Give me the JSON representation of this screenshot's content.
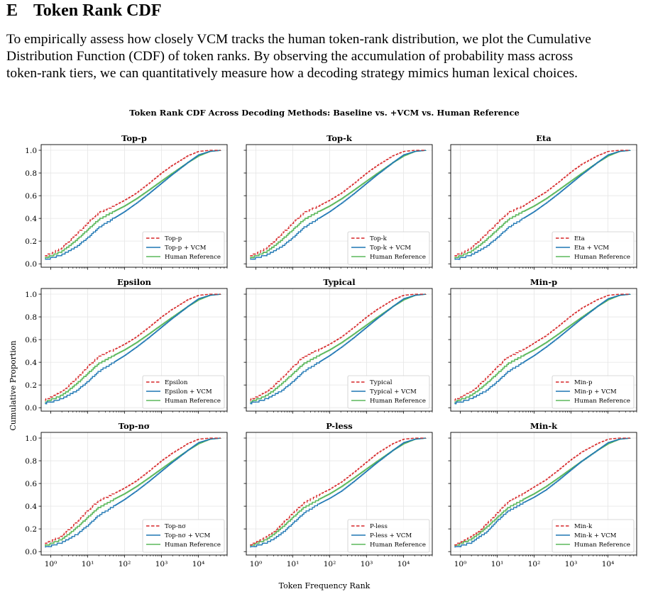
{
  "section": {
    "number": "E",
    "title": "Token Rank CDF",
    "paragraph_lines": [
      "To empirically assess how closely VCM tracks the human token-rank distribution, we plot the Cumulative",
      "Distribution Function (CDF) of token ranks. By observing the accumulation of probability mass across",
      "token-rank tiers, we can quantitatively measure how a decoding strategy mimics human lexical choices."
    ]
  },
  "figure": {
    "suptitle": "Token Rank CDF Across Decoding Methods: Baseline vs. +VCM vs. Human Reference",
    "xlabel": "Token Frequency Rank",
    "ylabel": "Cumulative Proportion",
    "colors": {
      "baseline": "#d62728",
      "vcm": "#1f77b4",
      "human": "#5cb85c"
    }
  },
  "chart_data": {
    "type": "line",
    "x_scale": "log",
    "x_ticks": [
      1,
      10,
      100,
      1000,
      10000
    ],
    "x_tick_labels": [
      "10⁰",
      "10¹",
      "10²",
      "10³",
      "10⁴"
    ],
    "xlim": [
      0.55,
      60000
    ],
    "ylim": [
      -0.03,
      1.05
    ],
    "y_ticks": [
      0.0,
      0.2,
      0.4,
      0.6,
      0.8,
      1.0
    ],
    "y_tick_labels": [
      "0.0",
      "0.2",
      "0.4",
      "0.6",
      "0.8",
      "1.0"
    ],
    "grid": true,
    "legend_position": "lower-right",
    "human_label": "Human Reference",
    "x": [
      0.7,
      1,
      2,
      3,
      5,
      10,
      20,
      50,
      100,
      200,
      500,
      1000,
      2000,
      5000,
      10000,
      20000,
      40000
    ],
    "human": [
      0.05,
      0.07,
      0.11,
      0.15,
      0.21,
      0.3,
      0.39,
      0.46,
      0.51,
      0.57,
      0.66,
      0.73,
      0.8,
      0.89,
      0.95,
      0.99,
      1.0
    ],
    "panels": [
      {
        "title": "Top-p",
        "baseline_label": "Top-p",
        "vcm_label": "Top-p + VCM",
        "baseline": [
          0.07,
          0.09,
          0.14,
          0.19,
          0.26,
          0.36,
          0.45,
          0.51,
          0.56,
          0.62,
          0.72,
          0.8,
          0.87,
          0.95,
          0.99,
          1.0,
          1.0
        ],
        "vcm": [
          0.04,
          0.05,
          0.08,
          0.11,
          0.15,
          0.23,
          0.32,
          0.4,
          0.46,
          0.53,
          0.63,
          0.71,
          0.79,
          0.89,
          0.96,
          0.99,
          1.0
        ]
      },
      {
        "title": "Top-k",
        "baseline_label": "Top-k",
        "vcm_label": "Top-k + VCM",
        "baseline": [
          0.07,
          0.09,
          0.14,
          0.19,
          0.26,
          0.36,
          0.45,
          0.51,
          0.56,
          0.62,
          0.72,
          0.8,
          0.87,
          0.95,
          0.99,
          1.0,
          1.0
        ],
        "vcm": [
          0.04,
          0.05,
          0.08,
          0.11,
          0.15,
          0.23,
          0.32,
          0.4,
          0.46,
          0.53,
          0.63,
          0.71,
          0.79,
          0.89,
          0.96,
          0.99,
          1.0
        ]
      },
      {
        "title": "Eta",
        "baseline_label": "Eta",
        "vcm_label": "Eta + VCM",
        "baseline": [
          0.07,
          0.09,
          0.14,
          0.19,
          0.26,
          0.36,
          0.45,
          0.51,
          0.57,
          0.63,
          0.73,
          0.81,
          0.88,
          0.95,
          0.99,
          1.0,
          1.0
        ],
        "vcm": [
          0.04,
          0.05,
          0.08,
          0.11,
          0.15,
          0.23,
          0.32,
          0.4,
          0.46,
          0.53,
          0.63,
          0.71,
          0.79,
          0.89,
          0.96,
          0.99,
          1.0
        ]
      },
      {
        "title": "Epsilon",
        "baseline_label": "Epsilon",
        "vcm_label": "Epsilon + VCM",
        "baseline": [
          0.07,
          0.09,
          0.14,
          0.19,
          0.26,
          0.36,
          0.45,
          0.51,
          0.56,
          0.62,
          0.72,
          0.8,
          0.87,
          0.95,
          0.99,
          1.0,
          1.0
        ],
        "vcm": [
          0.04,
          0.05,
          0.08,
          0.11,
          0.15,
          0.23,
          0.32,
          0.4,
          0.46,
          0.53,
          0.63,
          0.71,
          0.79,
          0.89,
          0.96,
          0.99,
          1.0
        ]
      },
      {
        "title": "Typical",
        "baseline_label": "Typical",
        "vcm_label": "Typical + VCM",
        "baseline": [
          0.07,
          0.09,
          0.14,
          0.19,
          0.26,
          0.36,
          0.45,
          0.51,
          0.56,
          0.62,
          0.72,
          0.8,
          0.87,
          0.95,
          0.99,
          1.0,
          1.0
        ],
        "vcm": [
          0.04,
          0.05,
          0.08,
          0.11,
          0.15,
          0.23,
          0.32,
          0.4,
          0.46,
          0.53,
          0.63,
          0.71,
          0.79,
          0.89,
          0.96,
          0.99,
          1.0
        ]
      },
      {
        "title": "Min-p",
        "baseline_label": "Min-p",
        "vcm_label": "Min-p + VCM",
        "baseline": [
          0.07,
          0.09,
          0.14,
          0.19,
          0.26,
          0.36,
          0.45,
          0.51,
          0.57,
          0.63,
          0.73,
          0.81,
          0.88,
          0.95,
          0.99,
          1.0,
          1.0
        ],
        "vcm": [
          0.04,
          0.05,
          0.08,
          0.11,
          0.15,
          0.23,
          0.32,
          0.4,
          0.46,
          0.53,
          0.63,
          0.71,
          0.79,
          0.89,
          0.96,
          0.99,
          1.0
        ]
      },
      {
        "title": "Top-nσ",
        "baseline_label": "Top-nσ",
        "vcm_label": "Top-nσ + VCM",
        "baseline": [
          0.07,
          0.09,
          0.14,
          0.19,
          0.26,
          0.36,
          0.45,
          0.51,
          0.56,
          0.62,
          0.72,
          0.8,
          0.87,
          0.95,
          0.99,
          1.0,
          1.0
        ],
        "vcm": [
          0.04,
          0.05,
          0.08,
          0.11,
          0.15,
          0.23,
          0.32,
          0.4,
          0.46,
          0.53,
          0.63,
          0.71,
          0.79,
          0.89,
          0.96,
          0.99,
          1.0
        ]
      },
      {
        "title": "P-less",
        "baseline_label": "P-less",
        "vcm_label": "P-less + VCM",
        "baseline": [
          0.06,
          0.08,
          0.13,
          0.17,
          0.24,
          0.34,
          0.43,
          0.5,
          0.55,
          0.61,
          0.71,
          0.79,
          0.87,
          0.95,
          0.99,
          1.0,
          1.0
        ],
        "vcm": [
          0.04,
          0.05,
          0.08,
          0.11,
          0.16,
          0.25,
          0.34,
          0.42,
          0.47,
          0.53,
          0.63,
          0.71,
          0.79,
          0.89,
          0.96,
          0.99,
          1.0
        ]
      },
      {
        "title": "Min-k",
        "baseline_label": "Min-k",
        "vcm_label": "Min-k + VCM",
        "baseline": [
          0.06,
          0.08,
          0.13,
          0.17,
          0.24,
          0.34,
          0.44,
          0.51,
          0.57,
          0.63,
          0.73,
          0.81,
          0.88,
          0.95,
          0.99,
          1.0,
          1.0
        ],
        "vcm": [
          0.04,
          0.05,
          0.08,
          0.12,
          0.17,
          0.27,
          0.36,
          0.43,
          0.48,
          0.54,
          0.64,
          0.72,
          0.8,
          0.89,
          0.96,
          0.99,
          1.0
        ]
      }
    ]
  }
}
